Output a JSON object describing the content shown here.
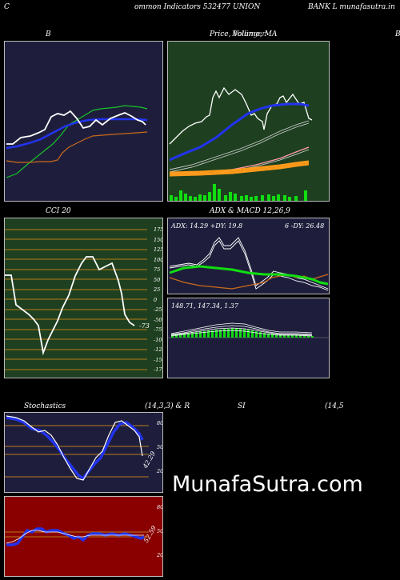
{
  "header": {
    "left": "C",
    "title_left": "ommon  Indicators 532477 UNION",
    "title_right": "BANK L  munafasutra.in"
  },
  "panels": {
    "bollinger": {
      "label": "B",
      "label_right": "B"
    },
    "price": {
      "label": "Price,  Volume,  MA",
      "label_overlay": "Bollinger"
    },
    "cci": {
      "label": "CCI 20",
      "ticks": [
        "175",
        "150",
        "125",
        "100",
        "75",
        "50",
        "25",
        "0",
        "-25",
        "-50",
        "-75",
        "-100",
        "-125",
        "-150",
        "-175"
      ],
      "value": "-73"
    },
    "adx": {
      "label": "ADX  & MACD 12,26,9",
      "reading_left": "ADX: 14.29  +DY: 19.8",
      "reading_right": "6  -DY: 26.48"
    },
    "macd": {
      "reading": "148.71,  147.34,  1.37"
    },
    "stochastics": {
      "label": "Stochastics",
      "params": "(14,3,3) & R",
      "ticks": [
        "80",
        "50",
        "20"
      ],
      "value": "42.29"
    },
    "rsi": {
      "label": "SI",
      "params": "(14,5",
      "ticks": [
        "80",
        "50",
        "20"
      ],
      "value": "52.59"
    }
  },
  "brand": "MunafaSutra.com",
  "colors": {
    "navy": "#1e1e3c",
    "green_bg": "#1e4020",
    "red_bg": "#8a0000",
    "orange_line": "#cc6a1a",
    "blue_line": "#2233ee"
  }
}
